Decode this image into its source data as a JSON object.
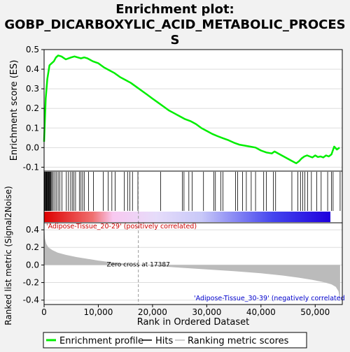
{
  "title_lines": [
    "Enrichment plot:",
    "GOBP_DICARBOXYLIC_ACID_METABOLIC_PROCES",
    "S"
  ],
  "legend": {
    "enrichment_label": "Enrichment profile",
    "hits_label": "Hits",
    "ranking_label": "Ranking metric scores",
    "enrichment_color": "#00ee00",
    "hits_color": "#000000",
    "ranking_color": "#bbbbbb"
  },
  "chart_data": [
    {
      "type": "line",
      "name": "enrichment-profile",
      "ylabel": "Enrichment score (ES)",
      "xlim": [
        0,
        55000
      ],
      "ylim": [
        -0.12,
        0.5
      ],
      "yticks": [
        -0.1,
        0.0,
        0.1,
        0.2,
        0.3,
        0.4,
        0.5
      ],
      "grid": true,
      "color": "#00ee00",
      "x": [
        0,
        300,
        600,
        1000,
        1400,
        1800,
        2200,
        2600,
        3200,
        4000,
        4500,
        5000,
        5600,
        6200,
        6800,
        7400,
        8000,
        9000,
        10000,
        11000,
        12000,
        13000,
        14000,
        15000,
        16000,
        17000,
        18000,
        19000,
        20000,
        21000,
        22000,
        23000,
        24000,
        25000,
        26000,
        27000,
        28000,
        29000,
        30000,
        31000,
        32000,
        33000,
        34000,
        35000,
        36000,
        37000,
        38000,
        39000,
        40000,
        41000,
        42000,
        42500,
        43500,
        44500,
        45500,
        46500,
        47000,
        47500,
        48000,
        48500,
        49000,
        49500,
        50000,
        50500,
        51000,
        51500,
        52000,
        52500,
        53000,
        53500,
        54000,
        54500
      ],
      "y": [
        0.03,
        0.25,
        0.35,
        0.42,
        0.43,
        0.44,
        0.46,
        0.47,
        0.465,
        0.45,
        0.455,
        0.46,
        0.465,
        0.46,
        0.455,
        0.46,
        0.455,
        0.44,
        0.43,
        0.41,
        0.395,
        0.38,
        0.36,
        0.345,
        0.33,
        0.31,
        0.29,
        0.27,
        0.25,
        0.23,
        0.21,
        0.19,
        0.175,
        0.16,
        0.145,
        0.135,
        0.12,
        0.1,
        0.085,
        0.07,
        0.058,
        0.048,
        0.038,
        0.025,
        0.015,
        0.01,
        0.005,
        0.0,
        -0.015,
        -0.025,
        -0.03,
        -0.02,
        -0.035,
        -0.05,
        -0.065,
        -0.08,
        -0.07,
        -0.055,
        -0.045,
        -0.04,
        -0.045,
        -0.05,
        -0.04,
        -0.048,
        -0.045,
        -0.05,
        -0.04,
        -0.045,
        -0.035,
        0.005,
        -0.01,
        0.0
      ]
    },
    {
      "type": "line",
      "name": "hits",
      "x": [
        100,
        200,
        300,
        400,
        500,
        600,
        700,
        800,
        900,
        1000,
        1100,
        1200,
        1300,
        1500,
        1700,
        2000,
        2300,
        2600,
        2900,
        3300,
        4100,
        4500,
        4900,
        5200,
        5500,
        5800,
        6500,
        6800,
        7100,
        7400,
        8200,
        9100,
        10900,
        11800,
        12500,
        13100,
        14800,
        15400,
        15800,
        16300,
        17300,
        21500,
        25500,
        25800,
        26700,
        27300,
        29400,
        31300,
        31600,
        32600,
        33000,
        35300,
        35700,
        36600,
        37300,
        38200,
        39000,
        40500,
        41000,
        42300,
        42700,
        45700,
        46800,
        47300,
        47700,
        48100,
        48600,
        49300,
        50300,
        51100,
        52300,
        53000,
        53300,
        54600
      ]
    },
    {
      "type": "area",
      "name": "ranking-metric",
      "ylabel": "Ranked list metric (Signal2Noise)",
      "xlabel": "Rank in Ordered Dataset",
      "xlim": [
        0,
        55000
      ],
      "ylim": [
        -0.45,
        0.48
      ],
      "yticks": [
        -0.4,
        -0.2,
        0.0,
        0.2,
        0.4
      ],
      "xticks": [
        0,
        10000,
        20000,
        30000,
        40000,
        50000
      ],
      "xtick_labels": [
        "0",
        "10,000",
        "20,000",
        "30,000",
        "40,000",
        "50,000"
      ],
      "color": "#bbbbbb",
      "x": [
        0,
        150,
        400,
        800,
        1500,
        2500,
        4000,
        6000,
        8000,
        10000,
        12500,
        15000,
        17387,
        20000,
        25000,
        30000,
        35000,
        40000,
        44000,
        47000,
        49500,
        51500,
        53000,
        53800,
        54300,
        54600
      ],
      "y": [
        0.45,
        0.3,
        0.24,
        0.2,
        0.17,
        0.14,
        0.115,
        0.09,
        0.07,
        0.05,
        0.03,
        0.015,
        0.0,
        -0.01,
        -0.03,
        -0.05,
        -0.07,
        -0.095,
        -0.12,
        -0.145,
        -0.17,
        -0.195,
        -0.22,
        -0.25,
        -0.3,
        -0.42
      ],
      "zero_cross_label": "Zero cross at 17387",
      "zero_cross_x": 17387,
      "positive_label": "'Adipose-Tissue_20-29' (positively correlated)",
      "negative_label": "'Adipose-Tissue_30-39' (negatively correlated"
    }
  ]
}
